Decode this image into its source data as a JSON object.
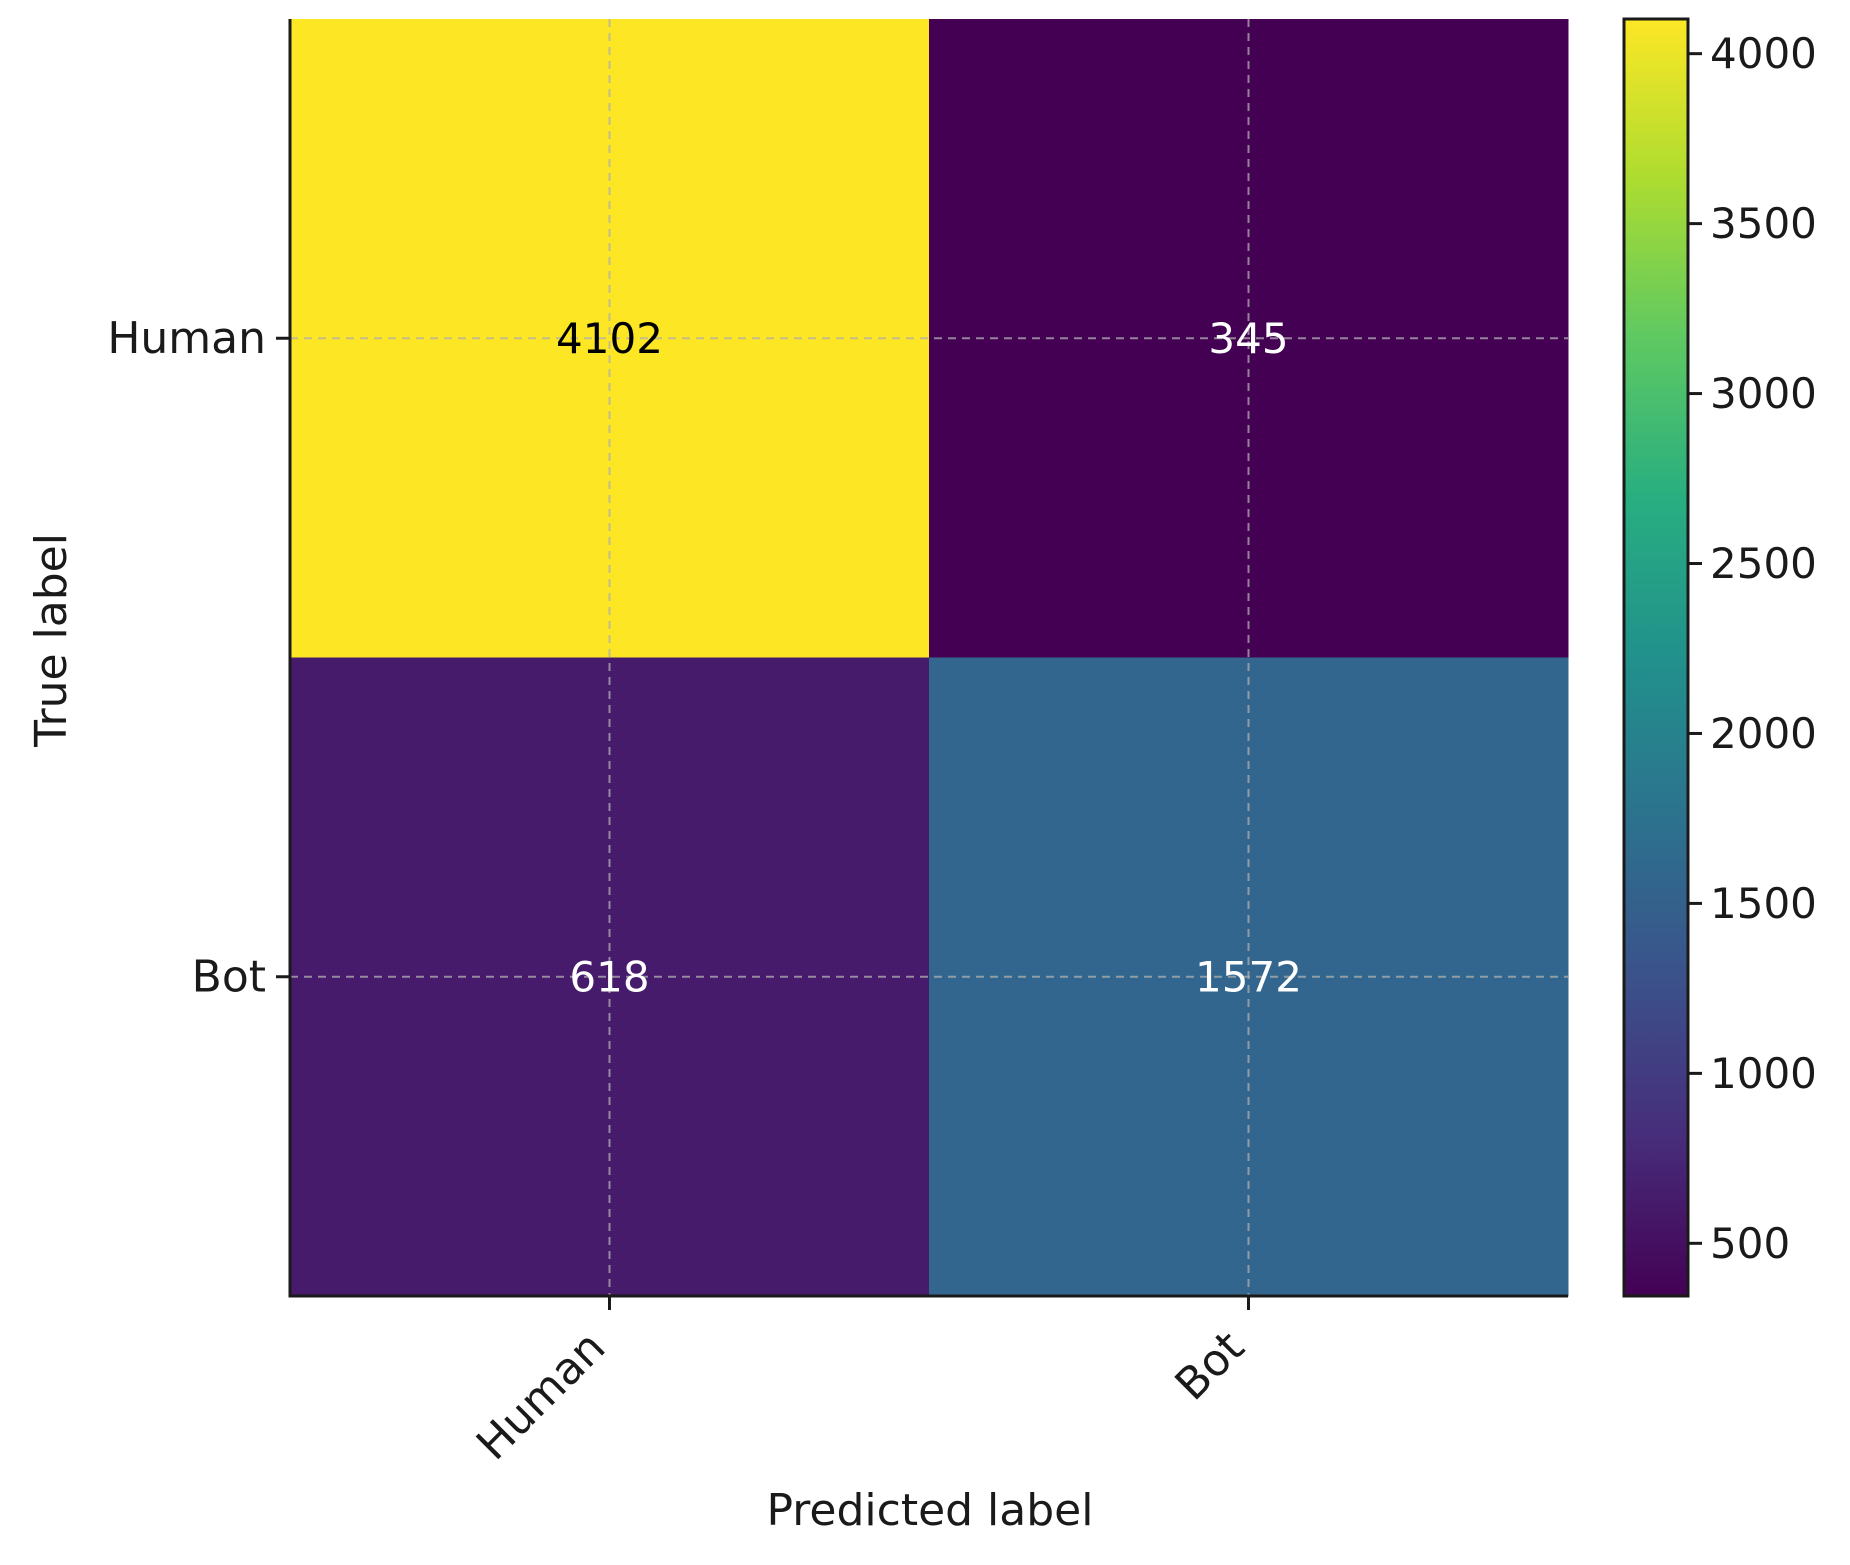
{
  "chart_data": {
    "type": "heatmap",
    "title": "",
    "xlabel": "Predicted label",
    "ylabel": "True label",
    "x_categories": [
      "Human",
      "Bot"
    ],
    "y_categories": [
      "Human",
      "Bot"
    ],
    "values": [
      [
        4102,
        345
      ],
      [
        618,
        1572
      ]
    ],
    "colormap": "viridis",
    "colorbar": {
      "range": [
        345,
        4102
      ],
      "ticks": [
        500,
        1000,
        1500,
        2000,
        2500,
        3000,
        3500,
        4000
      ]
    },
    "grid": true,
    "x_tick_rotation": "45 degrees",
    "annotation_colors": {
      "dark_text": "#000000",
      "light_text": "#ffffff"
    }
  }
}
